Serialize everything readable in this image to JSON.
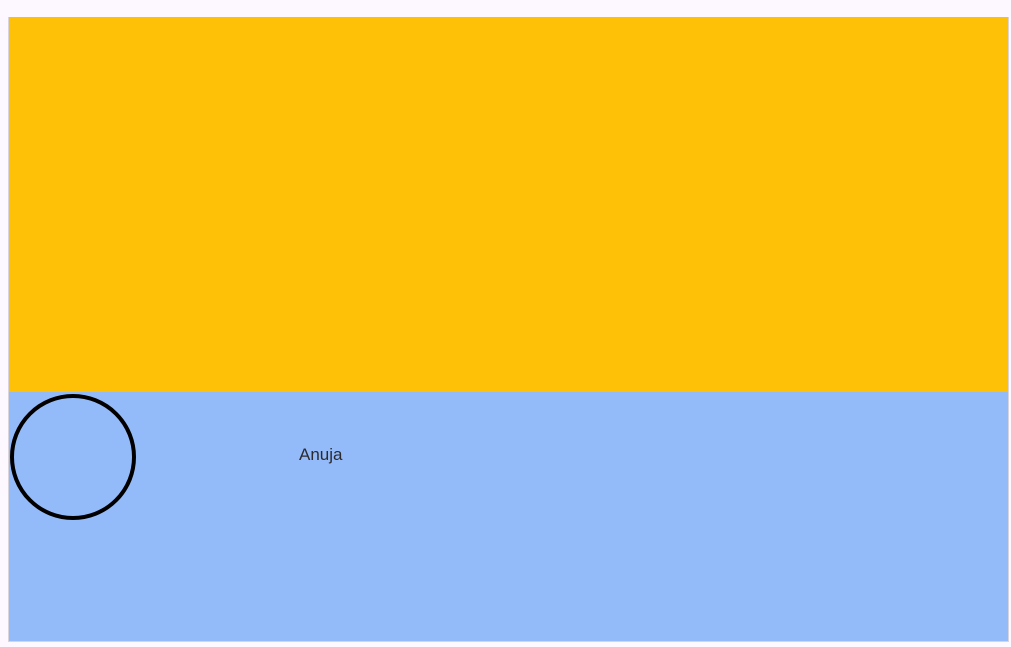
{
  "colors": {
    "page_background": "#fdf7ff",
    "header_banner": "#ffc107",
    "profile_panel": "#94bbf9",
    "avatar_border": "#000000",
    "text": "#2b2b2f"
  },
  "profile": {
    "avatar_icon": "avatar-placeholder-circle",
    "name": "Anuja"
  }
}
